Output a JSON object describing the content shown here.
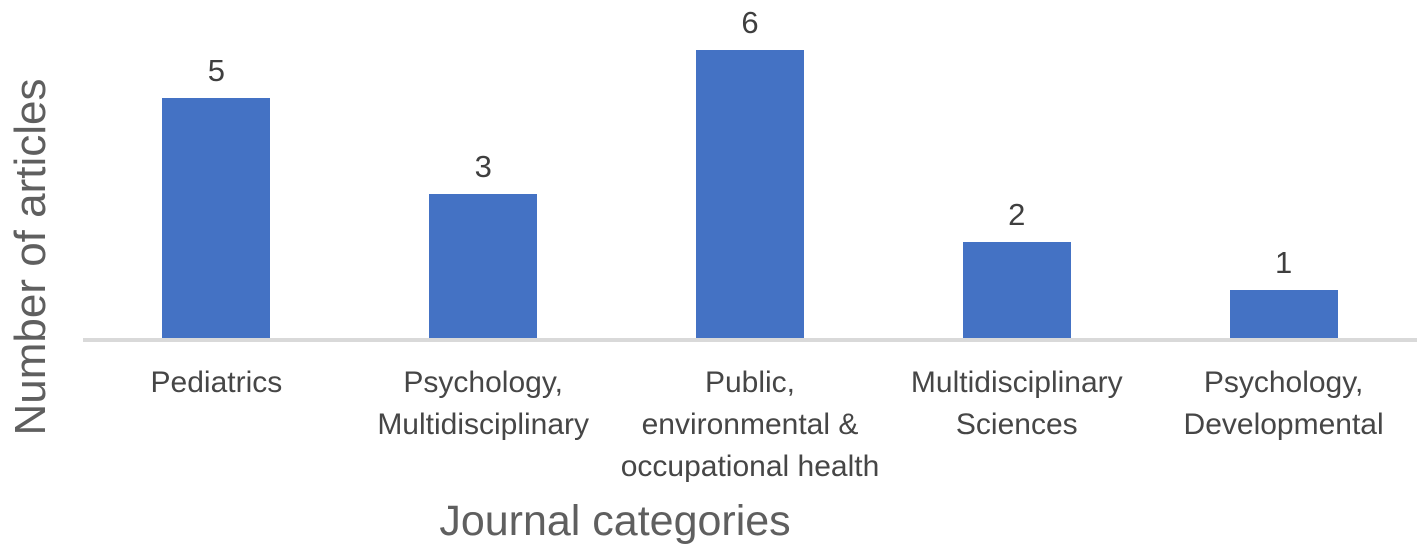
{
  "chart_data": {
    "type": "bar",
    "title": "",
    "xlabel": "Journal categories",
    "ylabel": "Number of articles",
    "categories": [
      "Pediatrics",
      "Psychology, Multidisciplinary",
      "Public, environmental & occupational health",
      "Multidisciplinary Sciences",
      "Psychology, Developmental"
    ],
    "values": [
      5,
      3,
      6,
      2,
      1
    ],
    "data_labels": [
      "5",
      "3",
      "6",
      "2",
      "1"
    ],
    "ylim": [
      0,
      6
    ],
    "grid": false,
    "legend": false,
    "y_tick_labels_visible": false,
    "bar_color": "#4472C4"
  },
  "colors": {
    "bar": "#4472C4",
    "axis_line": "#D9D9D9",
    "axis_title_text": "#5F5F5F",
    "category_text": "#464646",
    "value_label_text": "#3F3F3F",
    "background": "#FFFFFF"
  }
}
